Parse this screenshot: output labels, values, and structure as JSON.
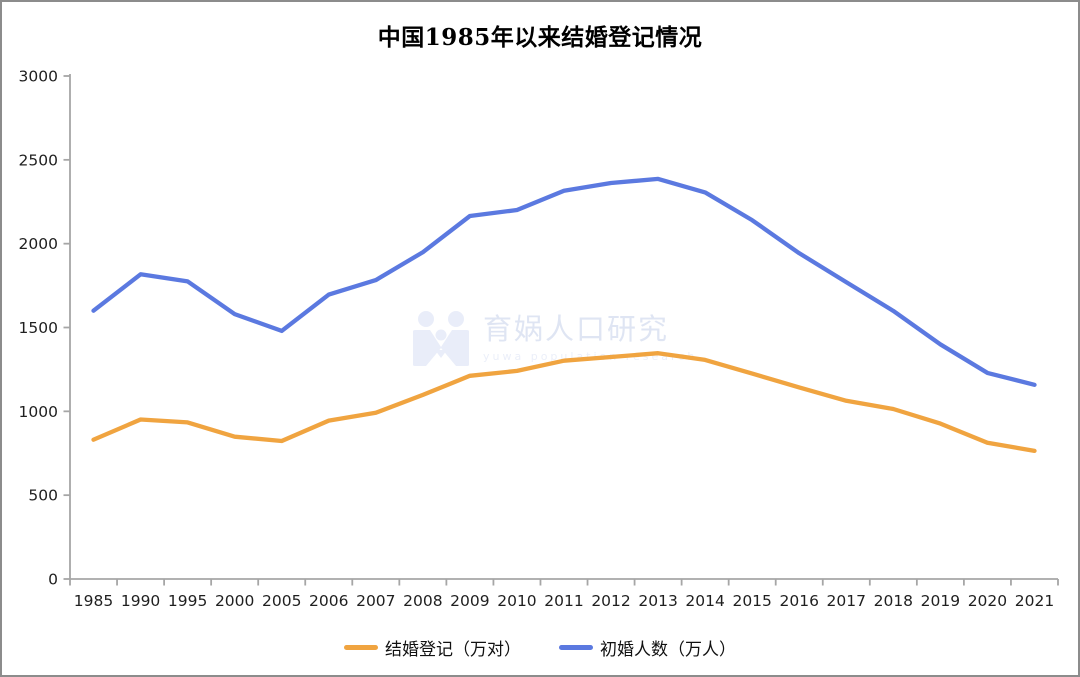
{
  "page": {
    "background": "#ffffff",
    "border_color": "#8c8c8c"
  },
  "chart_data": {
    "type": "line",
    "title": "中国1985年以来结婚登记情况",
    "categories": [
      "1985",
      "1990",
      "1995",
      "2000",
      "2005",
      "2006",
      "2007",
      "2008",
      "2009",
      "2010",
      "2011",
      "2012",
      "2013",
      "2014",
      "2015",
      "2016",
      "2017",
      "2018",
      "2019",
      "2020",
      "2021"
    ],
    "series": [
      {
        "name": "结婚登记（万对）",
        "color": "#F0A440",
        "values": [
          831,
          951,
          934,
          849,
          823,
          945,
          991,
          1098,
          1212,
          1241,
          1302,
          1324,
          1347,
          1307,
          1225,
          1143,
          1063,
          1014,
          927,
          813,
          764
        ]
      },
      {
        "name": "初婚人数（万人）",
        "color": "#5B79E0",
        "values": [
          1600,
          1817,
          1775,
          1580,
          1480,
          1696,
          1783,
          1949,
          2165,
          2201,
          2316,
          2362,
          2386,
          2306,
          2140,
          1943,
          1770,
          1599,
          1399,
          1229,
          1158
        ]
      }
    ],
    "xlabel": "",
    "ylabel": "",
    "ylim": [
      0,
      3000
    ],
    "yticks": [
      0,
      500,
      1000,
      1500,
      2000,
      2500,
      3000
    ],
    "grid": false,
    "legend_position": "bottom",
    "axis_color": "#a6a6a6",
    "tick_label_color": "#1f1f1f"
  },
  "watermark": {
    "icon": "yuwa-logo-icon",
    "text": "育娲人口研究",
    "subtext": "yuwa population research"
  }
}
